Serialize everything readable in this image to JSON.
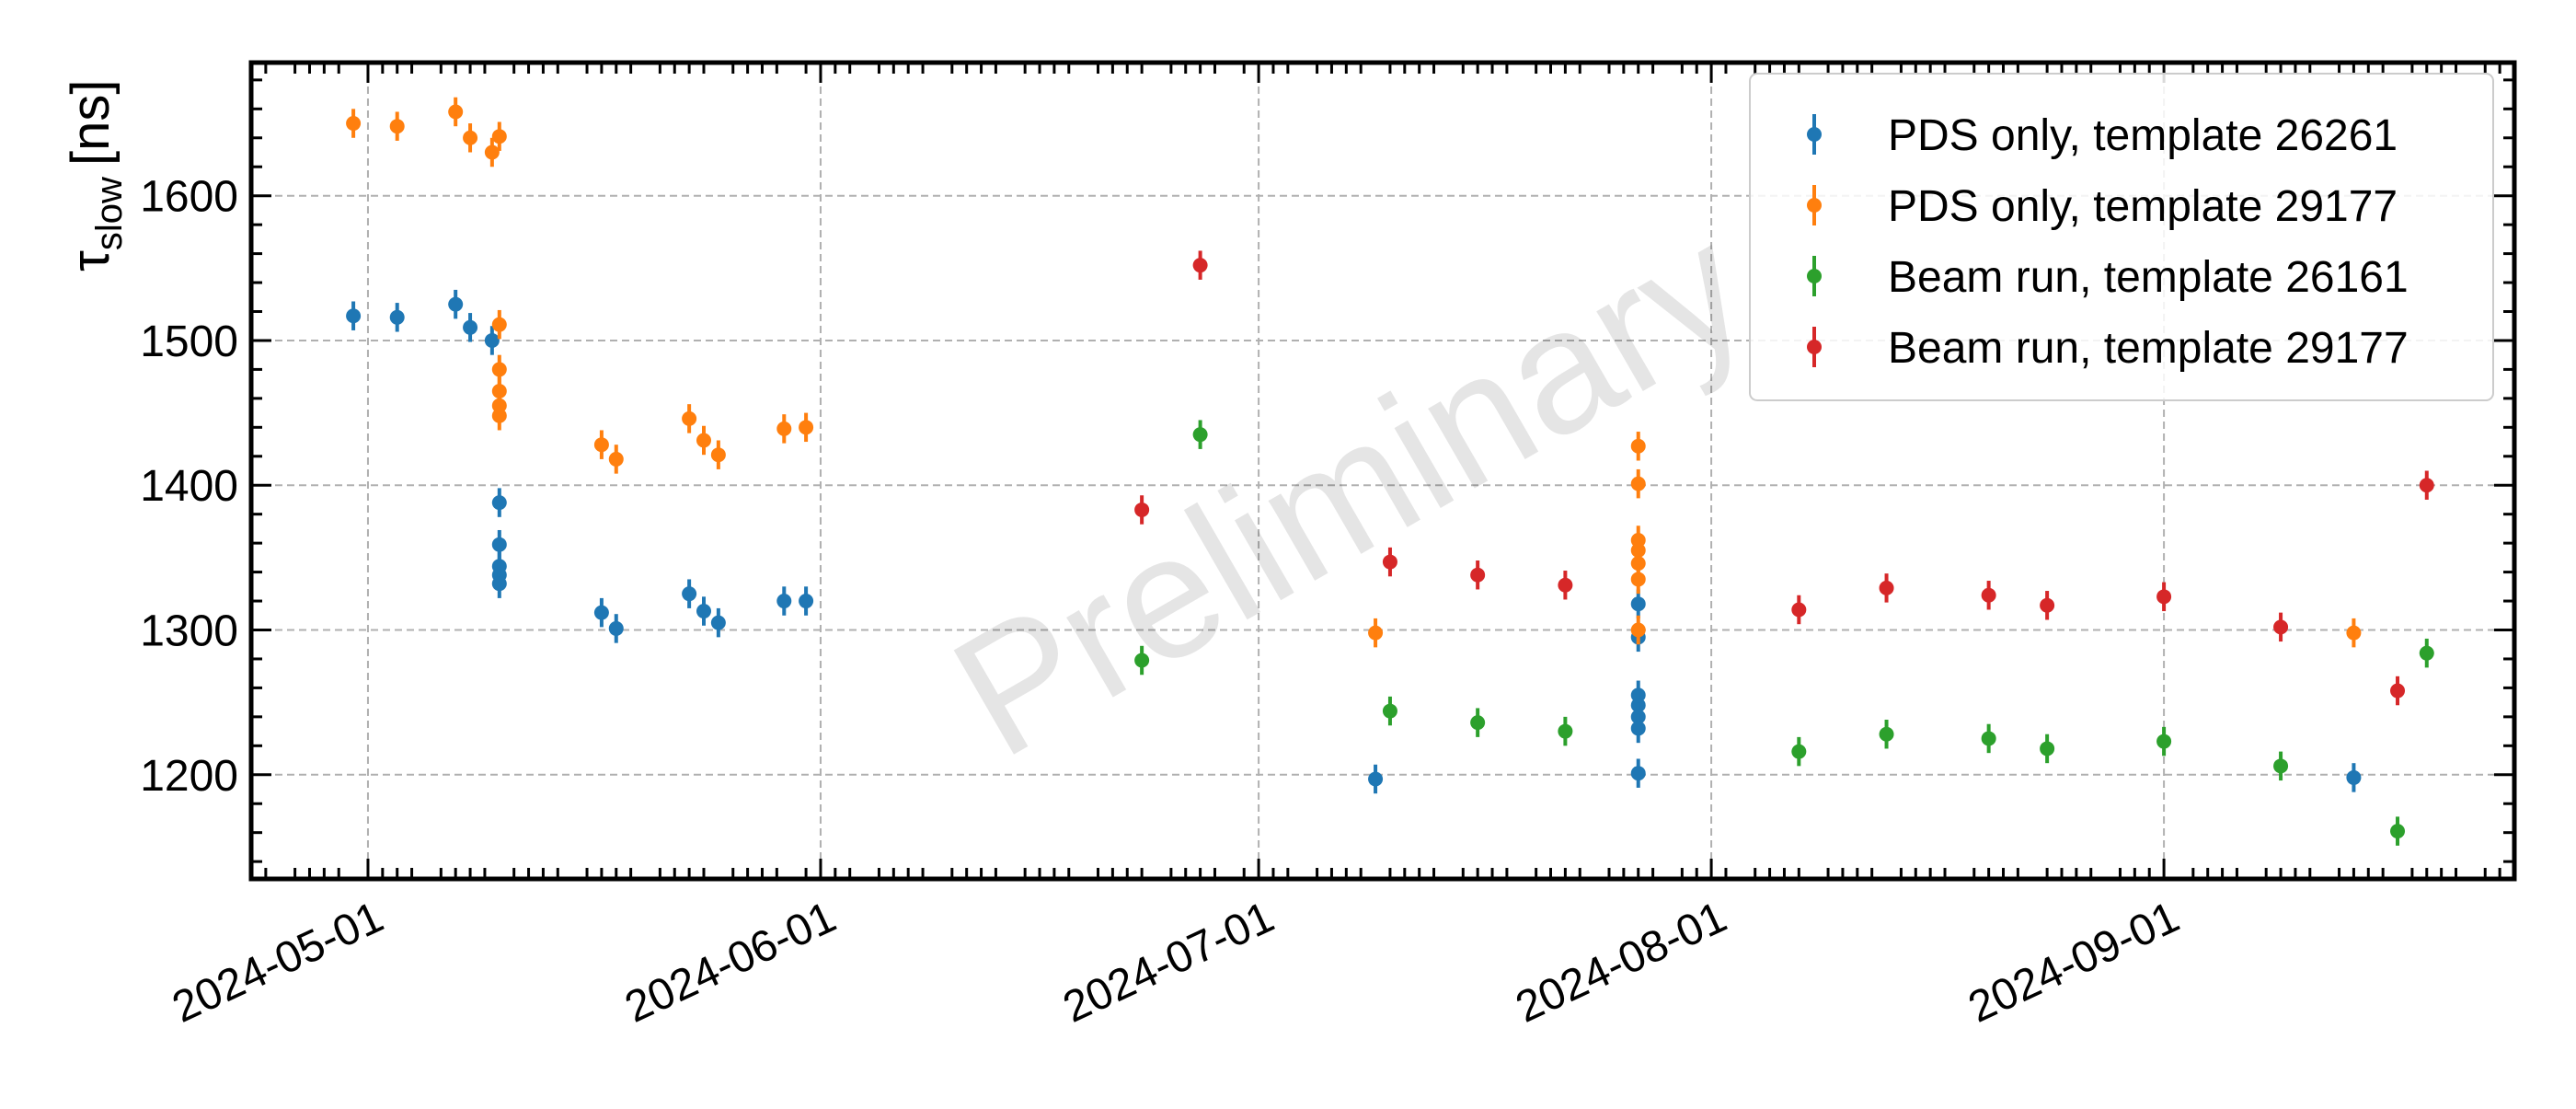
{
  "chart_data": {
    "type": "scatter",
    "title": "",
    "xlabel": "",
    "ylabel": "[ns]",
    "ylabel_symbol": "τ",
    "ylabel_subscript": "slow",
    "xlim": [
      "2024-04-23",
      "2024-09-25"
    ],
    "ylim": [
      1128,
      1692
    ],
    "x_ticks": [
      "2024-05-01",
      "2024-06-01",
      "2024-07-01",
      "2024-08-01",
      "2024-09-01"
    ],
    "y_ticks": [
      1200,
      1300,
      1400,
      1500,
      1600
    ],
    "grid": true,
    "legend_position": "upper right",
    "watermark": "Preliminary",
    "error_bar": 10,
    "series": [
      {
        "name": "PDS only, template 26261",
        "color": "#1f77b4",
        "points": [
          [
            "2024-04-30",
            1517
          ],
          [
            "2024-05-03",
            1516
          ],
          [
            "2024-05-07",
            1525
          ],
          [
            "2024-05-08",
            1509
          ],
          [
            "2024-05-09.5",
            1500
          ],
          [
            "2024-05-10",
            1388
          ],
          [
            "2024-05-10",
            1359
          ],
          [
            "2024-05-10",
            1344
          ],
          [
            "2024-05-10",
            1338
          ],
          [
            "2024-05-10",
            1332
          ],
          [
            "2024-05-17",
            1312
          ],
          [
            "2024-05-18",
            1301
          ],
          [
            "2024-05-23",
            1325
          ],
          [
            "2024-05-24",
            1313
          ],
          [
            "2024-05-25",
            1305
          ],
          [
            "2024-05-29.5",
            1320
          ],
          [
            "2024-05-31",
            1320
          ],
          [
            "2024-07-09",
            1197
          ],
          [
            "2024-07-27",
            1318
          ],
          [
            "2024-07-27",
            1295
          ],
          [
            "2024-07-27",
            1255
          ],
          [
            "2024-07-27",
            1248
          ],
          [
            "2024-07-27",
            1240
          ],
          [
            "2024-07-27",
            1232
          ],
          [
            "2024-07-27",
            1201
          ],
          [
            "2024-09-14",
            1198
          ]
        ]
      },
      {
        "name": "PDS only, template 29177",
        "color": "#ff7f0e",
        "points": [
          [
            "2024-04-30",
            1650
          ],
          [
            "2024-05-03",
            1648
          ],
          [
            "2024-05-07",
            1658
          ],
          [
            "2024-05-08",
            1640
          ],
          [
            "2024-05-09.5",
            1630
          ],
          [
            "2024-05-10",
            1641
          ],
          [
            "2024-05-10",
            1511
          ],
          [
            "2024-05-10",
            1480
          ],
          [
            "2024-05-10",
            1465
          ],
          [
            "2024-05-10",
            1455
          ],
          [
            "2024-05-10",
            1448
          ],
          [
            "2024-05-17",
            1428
          ],
          [
            "2024-05-18",
            1418
          ],
          [
            "2024-05-23",
            1446
          ],
          [
            "2024-05-24",
            1431
          ],
          [
            "2024-05-25",
            1421
          ],
          [
            "2024-05-29.5",
            1439
          ],
          [
            "2024-05-31",
            1440
          ],
          [
            "2024-07-09",
            1298
          ],
          [
            "2024-07-27",
            1427
          ],
          [
            "2024-07-27",
            1401
          ],
          [
            "2024-07-27",
            1362
          ],
          [
            "2024-07-27",
            1355
          ],
          [
            "2024-07-27",
            1346
          ],
          [
            "2024-07-27",
            1335
          ],
          [
            "2024-07-27",
            1300
          ],
          [
            "2024-09-14",
            1298
          ]
        ]
      },
      {
        "name": "Beam run, template 26161",
        "color": "#2ca02c",
        "points": [
          [
            "2024-06-23",
            1279
          ],
          [
            "2024-06-27",
            1435
          ],
          [
            "2024-07-10",
            1244
          ],
          [
            "2024-07-16",
            1236
          ],
          [
            "2024-07-22",
            1230
          ],
          [
            "2024-08-07",
            1216
          ],
          [
            "2024-08-13",
            1228
          ],
          [
            "2024-08-20",
            1225
          ],
          [
            "2024-08-24",
            1218
          ],
          [
            "2024-09-01",
            1223
          ],
          [
            "2024-09-09",
            1206
          ],
          [
            "2024-09-17",
            1161
          ],
          [
            "2024-09-19",
            1284
          ]
        ]
      },
      {
        "name": "Beam run, template 29177",
        "color": "#d62728",
        "points": [
          [
            "2024-06-23",
            1383
          ],
          [
            "2024-06-27",
            1552
          ],
          [
            "2024-07-10",
            1347
          ],
          [
            "2024-07-16",
            1338
          ],
          [
            "2024-07-22",
            1331
          ],
          [
            "2024-08-07",
            1314
          ],
          [
            "2024-08-13",
            1329
          ],
          [
            "2024-08-20",
            1324
          ],
          [
            "2024-08-24",
            1317
          ],
          [
            "2024-09-01",
            1323
          ],
          [
            "2024-09-09",
            1302
          ],
          [
            "2024-09-17",
            1258
          ],
          [
            "2024-09-19",
            1400
          ]
        ]
      }
    ]
  }
}
